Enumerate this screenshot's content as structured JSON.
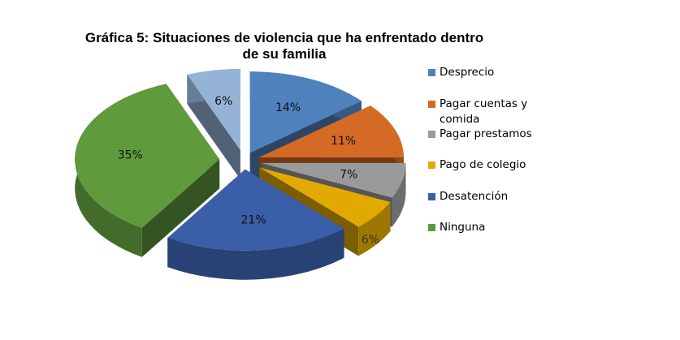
{
  "chart_data": {
    "type": "pie",
    "title": "Gráfica 5: Situaciones de violencia que ha enfrentado dentro de su familia",
    "title_lines": [
      "Gráfica 5: Situaciones de violencia que ha enfrentado dentro",
      "de su familia"
    ],
    "slices": [
      {
        "label": "Desprecio",
        "value": 14,
        "data_label": "14%",
        "color": "#4f81bd",
        "in_legend": true
      },
      {
        "label": "Pagar cuentas y comida",
        "value": 11,
        "data_label": "11%",
        "color": "#d46a24",
        "in_legend": true
      },
      {
        "label": "Pagar prestamos",
        "value": 7,
        "data_label": "7%",
        "color": "#9a9a9a",
        "in_legend": true
      },
      {
        "label": "Pago de colegio",
        "value": 6,
        "data_label": "6%",
        "color": "#e2aa00",
        "in_legend": true
      },
      {
        "label": "Desatención",
        "value": 21,
        "data_label": "21%",
        "color": "#3a5ea7",
        "in_legend": true
      },
      {
        "label": "Ninguna",
        "value": 35,
        "data_label": "35%",
        "color": "#5f9a3d",
        "in_legend": true
      },
      {
        "label": "",
        "value": 6,
        "data_label": "6%",
        "color": "#95b3d7",
        "in_legend": false
      }
    ],
    "legend_position": "right",
    "exploded": true,
    "style": "3d"
  }
}
